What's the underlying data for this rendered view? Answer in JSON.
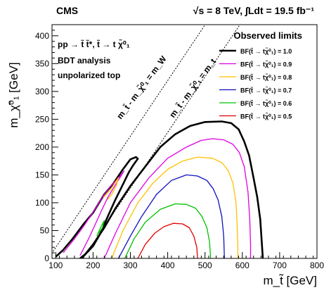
{
  "header": {
    "experiment": "CMS",
    "energy_lumi": "√s = 8 TeV, ∫Ldt = 19.5 fb⁻¹"
  },
  "process": {
    "line1": "pp → t̃ t̃*, t̃ → t χ̃⁰₁",
    "line2": "BDT analysis",
    "line3": "unpolarized top"
  },
  "legend": {
    "title": "Observed limits",
    "entries": [
      {
        "label": "BF(t̃ → tχ̃⁰₁) = 1.0",
        "color": "#000000"
      },
      {
        "label": "BF(t̃ → tχ̃⁰₁) = 0.9",
        "color": "#e000e0"
      },
      {
        "label": "BF(t̃ → tχ̃⁰₁) = 0.8",
        "color": "#ffc000"
      },
      {
        "label": "BF(t̃ → tχ̃⁰₁) = 0.7",
        "color": "#1010c0"
      },
      {
        "label": "BF(t̃ → tχ̃⁰₁) = 0.6",
        "color": "#00c000"
      },
      {
        "label": "BF(t̃ → tχ̃⁰₁) = 0.5",
        "color": "#e00000"
      }
    ]
  },
  "diagonals": {
    "mw_label": "m_t̃ - m_χ̃⁰₁ = m_W",
    "mt_label": "m_t̃ - m_χ̃⁰₁ = m_t"
  },
  "chart_data": {
    "type": "line",
    "xlabel": "m_t̃ [GeV]",
    "ylabel": "m_χ̃⁰₁ [GeV]",
    "xlim": [
      90,
      800
    ],
    "ylim": [
      0,
      420
    ],
    "xticks": [
      100,
      200,
      300,
      400,
      500,
      600,
      700,
      800
    ],
    "yticks": [
      0,
      50,
      100,
      150,
      200,
      250,
      300,
      350,
      400
    ],
    "diagonal_offsets": [
      80.4,
      173.5
    ],
    "series": [
      {
        "name": "BF(t̃ → tχ̃⁰₁) = 1.0",
        "color": "#000000",
        "width": 2.6,
        "segments": [
          [
            [
              100,
              3
            ],
            [
              120,
              15
            ],
            [
              145,
              35
            ],
            [
              175,
              62
            ],
            [
              200,
              82
            ],
            [
              230,
              115
            ],
            [
              255,
              135
            ],
            [
              280,
              160
            ],
            [
              300,
              178
            ],
            [
              315,
              182
            ],
            [
              320,
              179
            ],
            [
              308,
              168
            ],
            [
              296,
              155
            ],
            [
              278,
              130
            ],
            [
              258,
              103
            ],
            [
              240,
              76
            ],
            [
              220,
              45
            ],
            [
              200,
              22
            ],
            [
              180,
              8
            ],
            [
              165,
              0
            ]
          ],
          [
            [
              170,
              0
            ],
            [
              200,
              25
            ],
            [
              230,
              55
            ],
            [
              260,
              90
            ],
            [
              300,
              130
            ],
            [
              340,
              165
            ],
            [
              380,
              200
            ],
            [
              420,
              223
            ],
            [
              460,
              238
            ],
            [
              500,
              245
            ],
            [
              545,
              246
            ],
            [
              570,
              243
            ],
            [
              590,
              232
            ],
            [
              605,
              210
            ],
            [
              618,
              185
            ],
            [
              630,
              145
            ],
            [
              640,
              110
            ],
            [
              648,
              70
            ],
            [
              652,
              30
            ],
            [
              655,
              0
            ]
          ]
        ]
      },
      {
        "name": "BF(t̃ → tχ̃⁰₁) = 0.9",
        "color": "#e000e0",
        "width": 1.3,
        "segments": [
          [
            [
              120,
              10
            ],
            [
              150,
              35
            ],
            [
              175,
              58
            ],
            [
              205,
              88
            ],
            [
              225,
              110
            ],
            [
              245,
              128
            ],
            [
              262,
              140
            ],
            [
              275,
              150
            ],
            [
              283,
              157
            ],
            [
              272,
              145
            ],
            [
              258,
              130
            ],
            [
              240,
              110
            ],
            [
              222,
              85
            ],
            [
              205,
              60
            ],
            [
              190,
              38
            ],
            [
              175,
              18
            ],
            [
              165,
              5
            ]
          ],
          [
            [
              230,
              0
            ],
            [
              260,
              45
            ],
            [
              300,
              100
            ],
            [
              350,
              145
            ],
            [
              400,
              180
            ],
            [
              450,
              200
            ],
            [
              490,
              212
            ],
            [
              520,
              215
            ],
            [
              550,
              213
            ],
            [
              575,
              205
            ],
            [
              592,
              190
            ],
            [
              605,
              165
            ],
            [
              615,
              120
            ],
            [
              620,
              70
            ],
            [
              622,
              25
            ],
            [
              622,
              0
            ]
          ]
        ]
      },
      {
        "name": "BF(t̃ → tχ̃⁰₁) = 0.8",
        "color": "#ffc000",
        "width": 1.3,
        "segments": [
          [
            [
              228,
              110
            ],
            [
              245,
              122
            ],
            [
              258,
              135
            ],
            [
              268,
              145
            ],
            [
              262,
              130
            ],
            [
              250,
              115
            ],
            [
              238,
              105
            ]
          ],
          [
            [
              250,
              0
            ],
            [
              280,
              50
            ],
            [
              320,
              100
            ],
            [
              360,
              135
            ],
            [
              400,
              160
            ],
            [
              440,
              175
            ],
            [
              480,
              182
            ],
            [
              520,
              180
            ],
            [
              545,
              172
            ],
            [
              562,
              158
            ],
            [
              575,
              135
            ],
            [
              583,
              100
            ],
            [
              586,
              60
            ],
            [
              588,
              20
            ],
            [
              588,
              0
            ]
          ]
        ]
      },
      {
        "name": "BF(t̃ → tχ̃⁰₁) = 0.7",
        "color": "#1010c0",
        "width": 1.3,
        "segments": [
          [
            [
              268,
              0
            ],
            [
              300,
              40
            ],
            [
              330,
              75
            ],
            [
              370,
              115
            ],
            [
              410,
              140
            ],
            [
              450,
              150
            ],
            [
              480,
              148
            ],
            [
              505,
              140
            ],
            [
              522,
              125
            ],
            [
              535,
              105
            ],
            [
              545,
              75
            ],
            [
              550,
              40
            ],
            [
              552,
              0
            ]
          ]
        ]
      },
      {
        "name": "BF(t̃ → tχ̃⁰₁) = 0.6",
        "color": "#00c000",
        "width": 1.3,
        "segments": [
          [
            [
              210,
              40
            ],
            [
              220,
              55
            ],
            [
              230,
              68
            ],
            [
              225,
              55
            ],
            [
              215,
              45
            ]
          ],
          [
            [
              285,
              0
            ],
            [
              310,
              35
            ],
            [
              340,
              65
            ],
            [
              380,
              88
            ],
            [
              420,
              98
            ],
            [
              450,
              97
            ],
            [
              475,
              90
            ],
            [
              492,
              75
            ],
            [
              505,
              55
            ],
            [
              512,
              30
            ],
            [
              515,
              0
            ]
          ]
        ]
      },
      {
        "name": "BF(t̃ → tχ̃⁰₁) = 0.5",
        "color": "#e00000",
        "width": 1.3,
        "segments": [
          [
            [
              320,
              0
            ],
            [
              340,
              25
            ],
            [
              365,
              45
            ],
            [
              390,
              57
            ],
            [
              415,
              63
            ],
            [
              440,
              62
            ],
            [
              458,
              55
            ],
            [
              470,
              40
            ],
            [
              478,
              20
            ],
            [
              480,
              0
            ]
          ]
        ]
      }
    ]
  }
}
